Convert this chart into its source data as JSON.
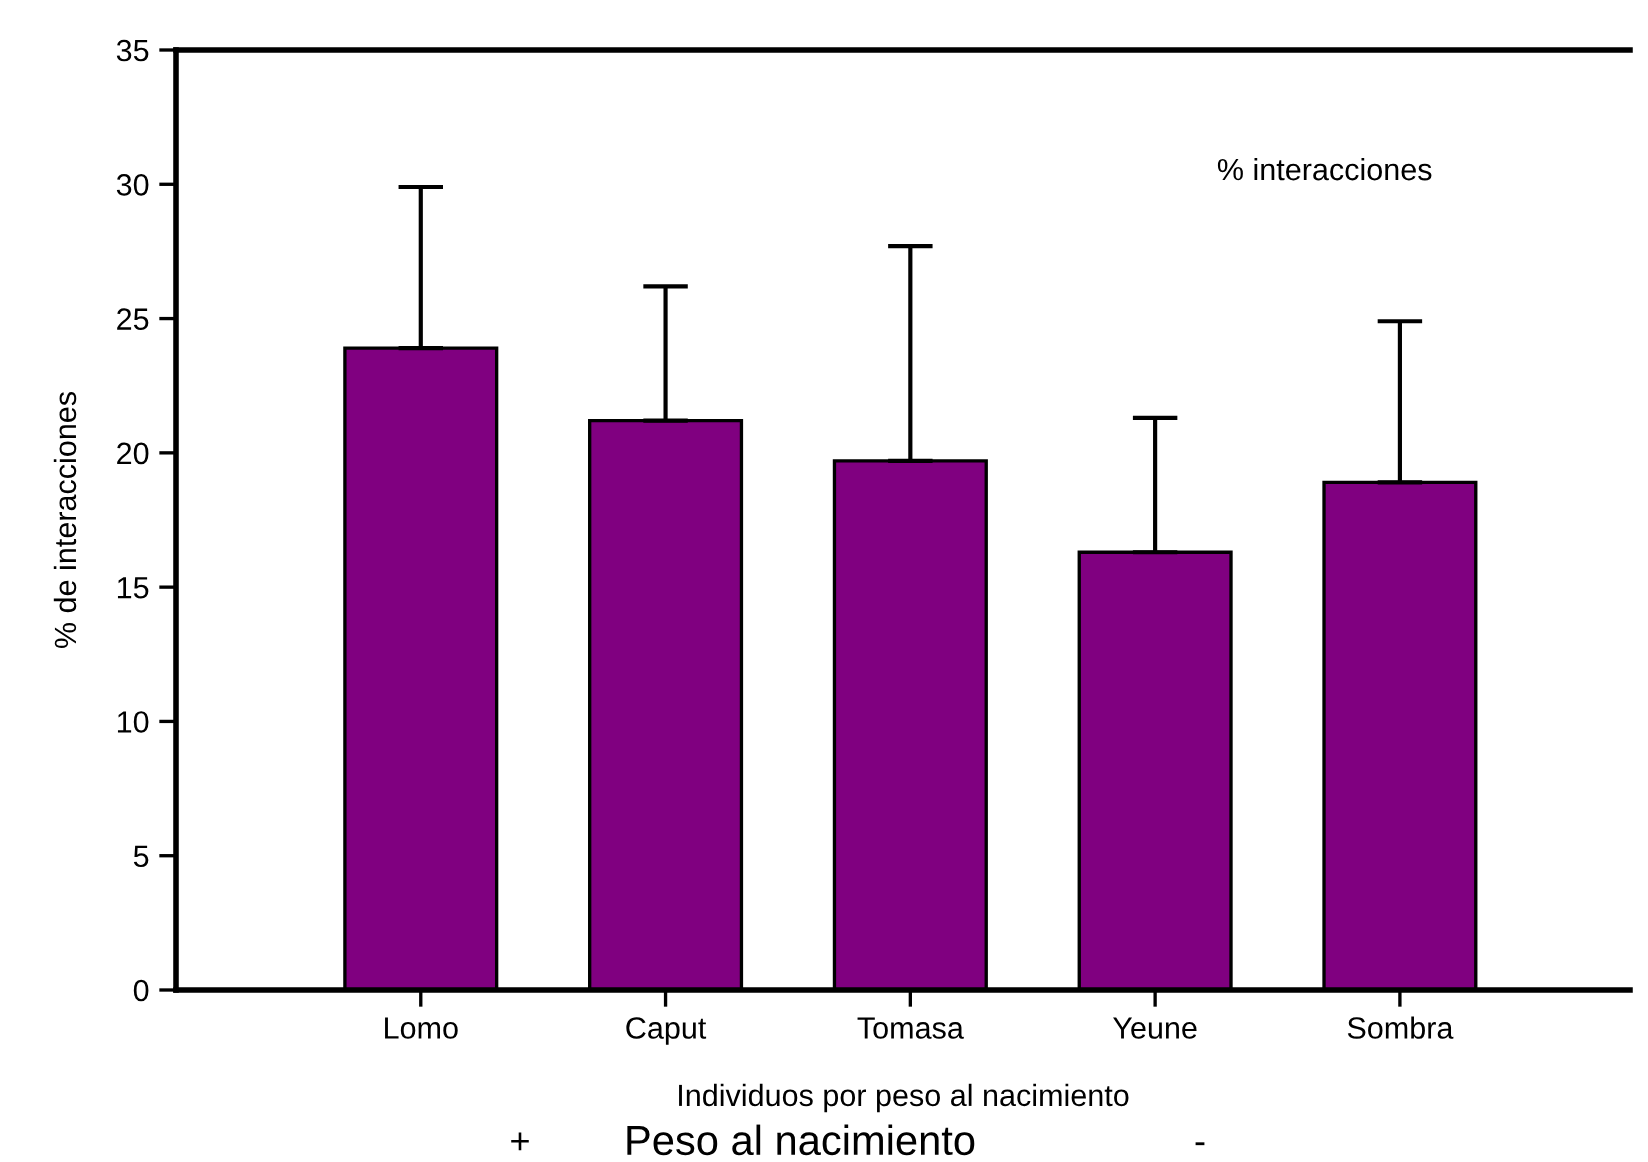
{
  "chart_data": {
    "type": "bar",
    "xlabel": "Individuos por peso al nacimiento",
    "ylabel": "% de interacciones",
    "categories": [
      "Lomo",
      "Caput",
      "Tomasa",
      "Yeune",
      "Sombra"
    ],
    "values": [
      23.9,
      21.2,
      19.7,
      16.3,
      18.9
    ],
    "errors": [
      [
        23.9,
        29.9
      ],
      [
        21.2,
        26.2
      ],
      [
        19.7,
        27.7
      ],
      [
        16.3,
        21.3
      ],
      [
        18.9,
        24.9
      ]
    ],
    "color": "#800080",
    "ylim": [
      0,
      35
    ],
    "yticks": [
      0,
      5,
      10,
      15,
      20,
      25,
      30,
      35
    ],
    "annotations": [
      "% interacciones",
      "+",
      "Peso al nacimiento",
      "-"
    ]
  }
}
